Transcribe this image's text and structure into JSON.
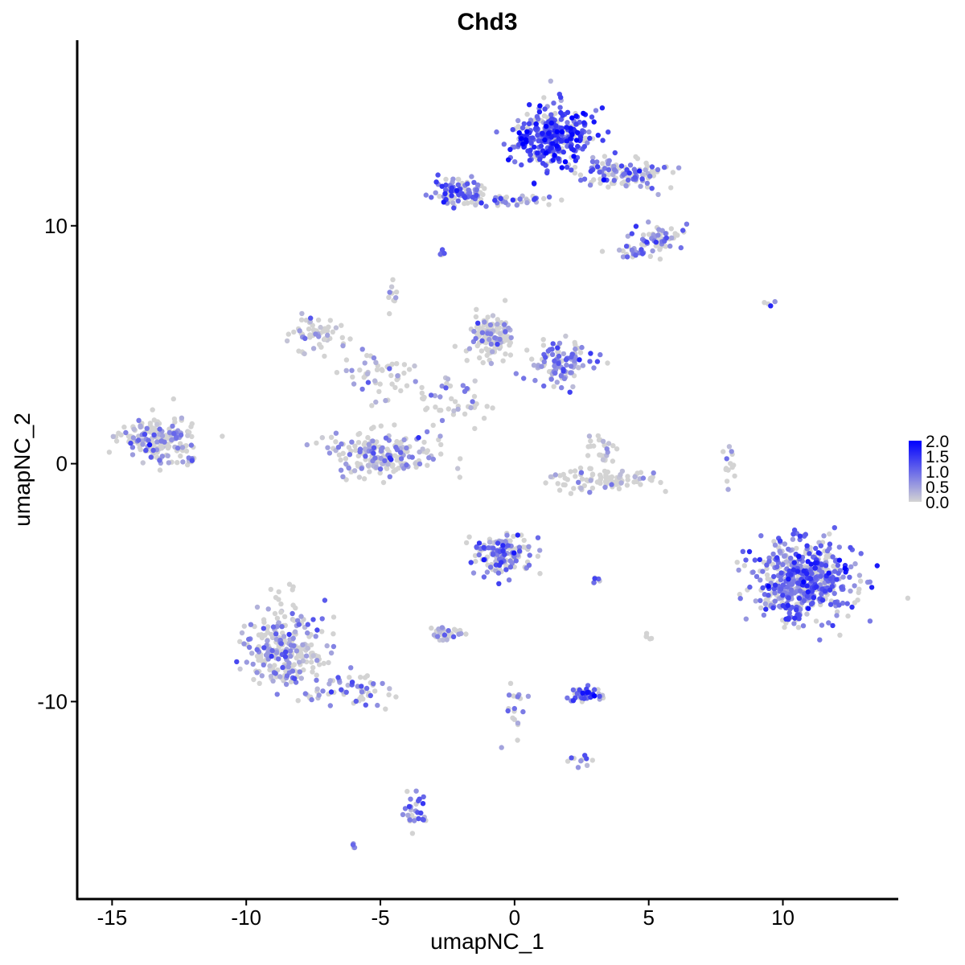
{
  "chart_data": {
    "type": "scatter",
    "title": "Chd3",
    "xlabel": "umapNC_1",
    "ylabel": "umapNC_2",
    "xlim": [
      -16.3,
      14.3
    ],
    "ylim": [
      -18.3,
      17.8
    ],
    "xticks": [
      -15,
      -10,
      -5,
      0,
      5,
      10
    ],
    "yticks": [
      -10,
      0,
      10
    ],
    "xtick_labels": [
      "-15",
      "-10",
      "-5",
      "0",
      "5",
      "10"
    ],
    "ytick_labels": [
      "-10",
      "0",
      "10"
    ],
    "grid": false,
    "color_scale": {
      "low": "#d3d3d3",
      "high": "#0000ff",
      "min": 0,
      "max": 2.0,
      "ticks": [
        0.0,
        0.5,
        1.0,
        1.5,
        2.0
      ],
      "tick_labels": [
        "0.0",
        "0.5",
        "1.0",
        "1.5",
        "2.0"
      ],
      "legend_position": "right"
    },
    "clusters": [
      {
        "center": [
          1.5,
          13.8
        ],
        "spread": [
          1.0,
          0.8
        ],
        "n": 340,
        "expr": 0.8
      },
      {
        "center": [
          4.0,
          12.2
        ],
        "spread": [
          1.3,
          0.4
        ],
        "n": 120,
        "expr": 0.55
      },
      {
        "center": [
          -2.2,
          11.3
        ],
        "spread": [
          0.6,
          0.5
        ],
        "n": 90,
        "expr": 0.6
      },
      {
        "center": [
          0.2,
          11.1
        ],
        "spread": [
          1.1,
          0.2
        ],
        "n": 40,
        "expr": 0.5
      },
      {
        "center": [
          5.3,
          9.5
        ],
        "spread": [
          0.6,
          0.4
        ],
        "n": 60,
        "expr": 0.5
      },
      {
        "center": [
          4.4,
          8.9
        ],
        "spread": [
          0.4,
          0.2
        ],
        "n": 20,
        "expr": 0.45
      },
      {
        "center": [
          -2.7,
          8.8
        ],
        "spread": [
          0.1,
          0.1
        ],
        "n": 8,
        "expr": 0.5
      },
      {
        "center": [
          -0.9,
          5.4
        ],
        "spread": [
          0.6,
          0.6
        ],
        "n": 130,
        "expr": 0.2
      },
      {
        "center": [
          1.7,
          4.2
        ],
        "spread": [
          0.9,
          0.6
        ],
        "n": 110,
        "expr": 0.5
      },
      {
        "center": [
          -7.5,
          5.4
        ],
        "spread": [
          0.7,
          0.5
        ],
        "n": 60,
        "expr": 0.2
      },
      {
        "center": [
          -5.0,
          3.7
        ],
        "spread": [
          1.0,
          0.7
        ],
        "n": 50,
        "expr": 0.2
      },
      {
        "center": [
          -2.5,
          2.6
        ],
        "spread": [
          1.0,
          0.8
        ],
        "n": 50,
        "expr": 0.15
      },
      {
        "center": [
          -4.8,
          0.4
        ],
        "spread": [
          1.3,
          0.6
        ],
        "n": 200,
        "expr": 0.3
      },
      {
        "center": [
          -13.3,
          1.0
        ],
        "spread": [
          0.9,
          0.6
        ],
        "n": 180,
        "expr": 0.3
      },
      {
        "center": [
          -12.1,
          0.1
        ],
        "spread": [
          0.2,
          0.1
        ],
        "n": 8,
        "expr": 0.3
      },
      {
        "center": [
          3.3,
          -0.7
        ],
        "spread": [
          1.3,
          0.3
        ],
        "n": 90,
        "expr": 0.05
      },
      {
        "center": [
          3.2,
          0.6
        ],
        "spread": [
          0.4,
          0.5
        ],
        "n": 25,
        "expr": 0.1
      },
      {
        "center": [
          10.8,
          -4.9
        ],
        "spread": [
          1.2,
          1.1
        ],
        "n": 550,
        "expr": 0.6
      },
      {
        "center": [
          -0.5,
          -3.8
        ],
        "spread": [
          0.7,
          0.6
        ],
        "n": 140,
        "expr": 0.5
      },
      {
        "center": [
          -8.6,
          -7.7
        ],
        "spread": [
          1.0,
          1.2
        ],
        "n": 260,
        "expr": 0.3
      },
      {
        "center": [
          -6.0,
          -9.5
        ],
        "spread": [
          1.0,
          0.5
        ],
        "n": 60,
        "expr": 0.4
      },
      {
        "center": [
          -3.7,
          -14.6
        ],
        "spread": [
          0.3,
          0.6
        ],
        "n": 30,
        "expr": 0.6
      },
      {
        "center": [
          2.5,
          -9.7
        ],
        "spread": [
          0.5,
          0.2
        ],
        "n": 45,
        "expr": 0.7
      },
      {
        "center": [
          -2.6,
          -7.1
        ],
        "spread": [
          0.4,
          0.2
        ],
        "n": 30,
        "expr": 0.15
      },
      {
        "center": [
          0.0,
          -10.3
        ],
        "spread": [
          0.4,
          0.9
        ],
        "n": 20,
        "expr": 0.45
      },
      {
        "center": [
          2.4,
          -12.4
        ],
        "spread": [
          0.3,
          0.2
        ],
        "n": 10,
        "expr": 0.4
      },
      {
        "center": [
          3.0,
          -4.9
        ],
        "spread": [
          0.2,
          0.1
        ],
        "n": 6,
        "expr": 0.3
      },
      {
        "center": [
          8.0,
          0.0
        ],
        "spread": [
          0.15,
          0.6
        ],
        "n": 15,
        "expr": 0.1
      },
      {
        "center": [
          9.5,
          6.7
        ],
        "spread": [
          0.2,
          0.1
        ],
        "n": 4,
        "expr": 0.5
      },
      {
        "center": [
          -4.6,
          7.1
        ],
        "spread": [
          0.2,
          0.4
        ],
        "n": 10,
        "expr": 0.25
      },
      {
        "center": [
          -6.0,
          -16.1
        ],
        "spread": [
          0.1,
          0.1
        ],
        "n": 4,
        "expr": 0.4
      },
      {
        "center": [
          5.0,
          -7.3
        ],
        "spread": [
          0.1,
          0.2
        ],
        "n": 5,
        "expr": 0.2
      }
    ]
  }
}
